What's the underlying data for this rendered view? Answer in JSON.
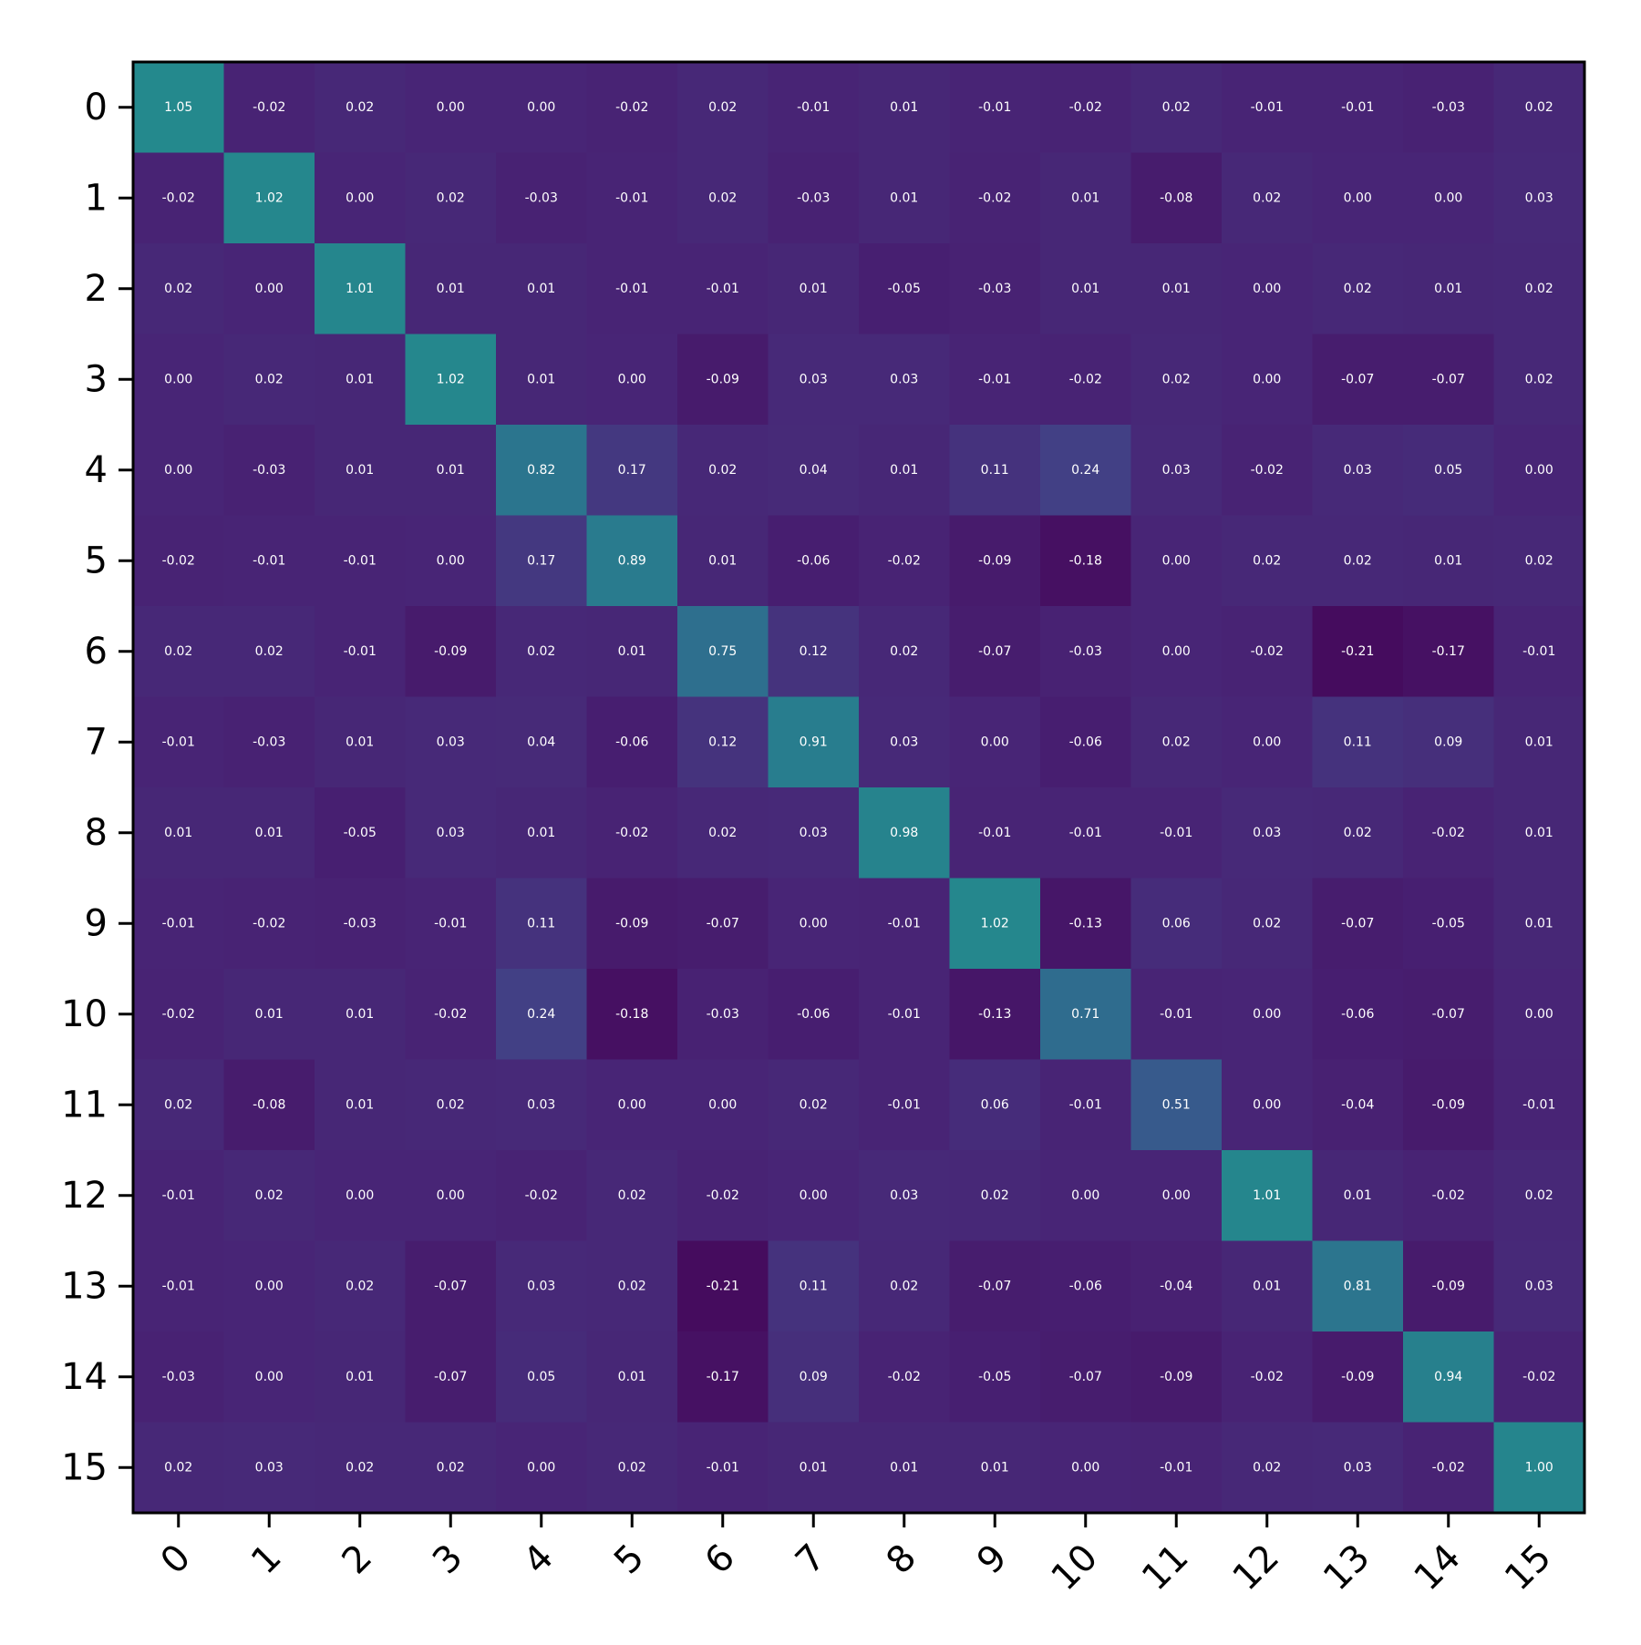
{
  "chart_data": {
    "type": "heatmap",
    "title": "",
    "xlabel": "",
    "ylabel": "",
    "x_ticks": [
      "0",
      "1",
      "2",
      "3",
      "4",
      "5",
      "6",
      "7",
      "8",
      "9",
      "10",
      "11",
      "12",
      "13",
      "14",
      "15"
    ],
    "y_ticks": [
      "0",
      "1",
      "2",
      "3",
      "4",
      "5",
      "6",
      "7",
      "8",
      "9",
      "10",
      "11",
      "12",
      "13",
      "14",
      "15"
    ],
    "colormap": "viridis",
    "color_range": [
      -0.3,
      2.0
    ],
    "grid": false,
    "values": [
      [
        1.05,
        -0.02,
        0.02,
        -0.0,
        -0.0,
        -0.02,
        0.02,
        -0.01,
        0.01,
        -0.01,
        -0.02,
        0.02,
        -0.01,
        -0.01,
        -0.03,
        0.02
      ],
      [
        -0.02,
        1.02,
        -0.0,
        0.02,
        -0.03,
        -0.01,
        0.02,
        -0.03,
        0.01,
        -0.02,
        0.01,
        -0.08,
        0.02,
        -0.0,
        0.0,
        0.03
      ],
      [
        0.02,
        -0.0,
        1.01,
        0.01,
        0.01,
        -0.01,
        -0.01,
        0.01,
        -0.05,
        -0.03,
        0.01,
        0.01,
        0.0,
        0.02,
        0.01,
        0.02
      ],
      [
        -0.0,
        0.02,
        0.01,
        1.02,
        0.01,
        -0.0,
        -0.09,
        0.03,
        0.03,
        -0.01,
        -0.02,
        0.02,
        0.0,
        -0.07,
        -0.07,
        0.02
      ],
      [
        -0.0,
        -0.03,
        0.01,
        0.01,
        0.82,
        0.17,
        0.02,
        0.04,
        0.01,
        0.11,
        0.24,
        0.03,
        -0.02,
        0.03,
        0.05,
        -0.0
      ],
      [
        -0.02,
        -0.01,
        -0.01,
        -0.0,
        0.17,
        0.89,
        0.01,
        -0.06,
        -0.02,
        -0.09,
        -0.18,
        -0.0,
        0.02,
        0.02,
        0.01,
        0.02
      ],
      [
        0.02,
        0.02,
        -0.01,
        -0.09,
        0.02,
        0.01,
        0.75,
        0.12,
        0.02,
        -0.07,
        -0.03,
        0.0,
        -0.02,
        -0.21,
        -0.17,
        -0.01
      ],
      [
        -0.01,
        -0.03,
        0.01,
        0.03,
        0.04,
        -0.06,
        0.12,
        0.91,
        0.03,
        0.0,
        -0.06,
        0.02,
        -0.0,
        0.11,
        0.09,
        0.01
      ],
      [
        0.01,
        0.01,
        -0.05,
        0.03,
        0.01,
        -0.02,
        0.02,
        0.03,
        0.98,
        -0.01,
        -0.01,
        -0.01,
        0.03,
        0.02,
        -0.02,
        0.01
      ],
      [
        -0.01,
        -0.02,
        -0.03,
        -0.01,
        0.11,
        -0.09,
        -0.07,
        0.0,
        -0.01,
        1.02,
        -0.13,
        0.06,
        0.02,
        -0.07,
        -0.05,
        0.01
      ],
      [
        -0.02,
        0.01,
        0.01,
        -0.02,
        0.24,
        -0.18,
        -0.03,
        -0.06,
        -0.01,
        -0.13,
        0.71,
        -0.01,
        -0.0,
        -0.06,
        -0.07,
        -0.0
      ],
      [
        0.02,
        -0.08,
        0.01,
        0.02,
        0.03,
        -0.0,
        0.0,
        0.02,
        -0.01,
        0.06,
        -0.01,
        0.51,
        -0.0,
        -0.04,
        -0.09,
        -0.01
      ],
      [
        -0.01,
        0.02,
        0.0,
        0.0,
        -0.02,
        0.02,
        -0.02,
        -0.0,
        0.03,
        0.02,
        -0.0,
        -0.0,
        1.01,
        0.01,
        -0.02,
        0.02
      ],
      [
        -0.01,
        -0.0,
        0.02,
        -0.07,
        0.03,
        0.02,
        -0.21,
        0.11,
        0.02,
        -0.07,
        -0.06,
        -0.04,
        0.01,
        0.81,
        -0.09,
        0.03
      ],
      [
        -0.03,
        0.0,
        0.01,
        -0.07,
        0.05,
        0.01,
        -0.17,
        0.09,
        -0.02,
        -0.05,
        -0.07,
        -0.09,
        -0.02,
        -0.09,
        0.94,
        -0.02
      ],
      [
        0.02,
        0.03,
        0.02,
        0.02,
        -0.0,
        0.02,
        -0.01,
        0.01,
        0.01,
        0.01,
        -0.0,
        -0.01,
        0.02,
        0.03,
        -0.02,
        1.0
      ]
    ]
  }
}
